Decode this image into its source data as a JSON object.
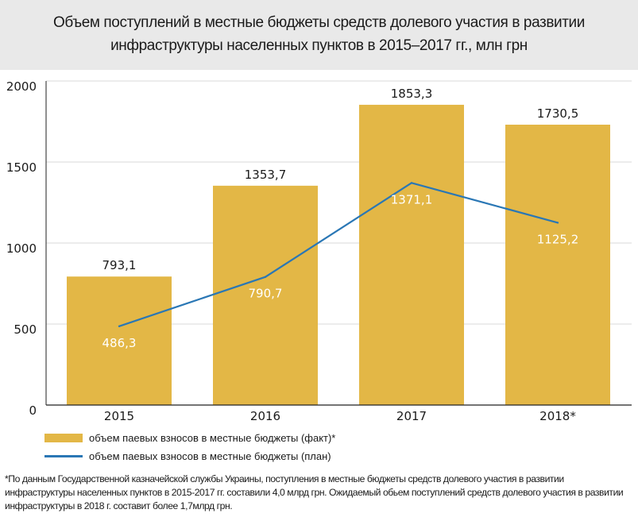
{
  "chart_data": {
    "type": "bar",
    "title": "Объем поступлений в местные бюджеты средств долевого участия в развитии инфраструктуры населенных пунктов в 2015–2017 гг., млн грн",
    "categories": [
      "2015",
      "2016",
      "2017",
      "2018*"
    ],
    "series": [
      {
        "name": "объем паевых взносов в местные бюджеты (факт)*",
        "type": "bar",
        "color": "#e3b746",
        "values": [
          793.1,
          1353.7,
          1853.3,
          1730.5
        ],
        "labels": [
          "793,1",
          "1353,7",
          "1853,3",
          "1730,5"
        ]
      },
      {
        "name": "объем паевых взносов в местные бюджеты (план)",
        "type": "line",
        "color": "#2a77b5",
        "values": [
          486.3,
          790.7,
          1371.1,
          1125.2
        ],
        "labels": [
          "486,3",
          "790,7",
          "1371,1",
          "1125,2"
        ]
      }
    ],
    "ylim": [
      0,
      2000
    ],
    "yticks": [
      "0",
      "500",
      "1000",
      "1500",
      "2000"
    ],
    "grid": true,
    "legend_position": "bottom-left"
  },
  "footnote": "*По данным Государственной казначейской службы Украины, поступления в местные бюджеты средств долевого участия в развитии инфраструктуры населенных пунктов в 2015-2017 гг. составили 4,0 млрд грн. Ожидаемый обьем поступлений средств долевого участия в развитии инфраструктуры в 2018 г. составит более 1,7млрд грн."
}
